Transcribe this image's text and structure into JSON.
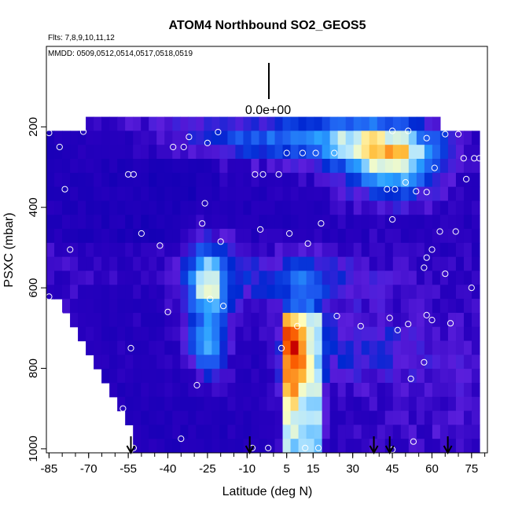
{
  "chart_data": {
    "type": "heatmap",
    "title": "ATOM4 Northbound SO2_GEOS5",
    "flights_label": "Flts: 7,8,9,10,11,12",
    "dates_label": "MMDD: 0509,0512,0514,0517,0518,0519",
    "scale_label": "0.0e+00",
    "xlabel": "Latitude (deg N)",
    "ylabel": "PSXC (mbar)",
    "xlim": [
      -86,
      81
    ],
    "ylim": [
      1010,
      0
    ],
    "x_ticks": [
      "-85",
      "-70",
      "-55",
      "-40",
      "-25",
      "-10",
      "5",
      "15",
      "30",
      "45",
      "60",
      "75"
    ],
    "x_tick_values": [
      -85,
      -70,
      -55,
      -40,
      -25,
      -10,
      5,
      15,
      30,
      45,
      60,
      75
    ],
    "y_ticks": [
      "200",
      "400",
      "600",
      "800",
      "1000"
    ],
    "y_tick_values": [
      200,
      400,
      600,
      800,
      1000
    ],
    "arrows_latitude": [
      -54,
      -9,
      38,
      44,
      66
    ],
    "colors": {
      "low": "#1400b4",
      "mid": "#2a90ff",
      "high": "#d40000"
    },
    "obs_points": [
      {
        "x": -85,
        "y": 215
      },
      {
        "x": -72,
        "y": 212
      },
      {
        "x": -81,
        "y": 250
      },
      {
        "x": -79,
        "y": 355
      },
      {
        "x": -55,
        "y": 318
      },
      {
        "x": -53,
        "y": 318
      },
      {
        "x": -50,
        "y": 465
      },
      {
        "x": -77,
        "y": 505
      },
      {
        "x": -43,
        "y": 495
      },
      {
        "x": -81,
        "y": 665
      },
      {
        "x": -40,
        "y": 660
      },
      {
        "x": -85,
        "y": 622
      },
      {
        "x": -54,
        "y": 750
      },
      {
        "x": -80,
        "y": 815
      },
      {
        "x": -29,
        "y": 842
      },
      {
        "x": -57,
        "y": 900
      },
      {
        "x": -57,
        "y": 955
      },
      {
        "x": -35,
        "y": 975
      },
      {
        "x": -53,
        "y": 998
      },
      {
        "x": -38,
        "y": 250
      },
      {
        "x": -34,
        "y": 250
      },
      {
        "x": -32,
        "y": 225
      },
      {
        "x": -25,
        "y": 240
      },
      {
        "x": -21,
        "y": 213
      },
      {
        "x": -27,
        "y": 440
      },
      {
        "x": -26,
        "y": 390
      },
      {
        "x": -20,
        "y": 485
      },
      {
        "x": -24,
        "y": 628
      },
      {
        "x": -19,
        "y": 645
      },
      {
        "x": -7,
        "y": 318
      },
      {
        "x": -4,
        "y": 318
      },
      {
        "x": -5,
        "y": 455
      },
      {
        "x": 2,
        "y": 318
      },
      {
        "x": 5,
        "y": 265
      },
      {
        "x": 11,
        "y": 265
      },
      {
        "x": 16,
        "y": 265
      },
      {
        "x": 23,
        "y": 265
      },
      {
        "x": 6,
        "y": 465
      },
      {
        "x": 13,
        "y": 490
      },
      {
        "x": 18,
        "y": 440
      },
      {
        "x": 24,
        "y": 670
      },
      {
        "x": 9,
        "y": 695
      },
      {
        "x": 3,
        "y": 750
      },
      {
        "x": 33,
        "y": 695
      },
      {
        "x": 45,
        "y": 210
      },
      {
        "x": 51,
        "y": 210
      },
      {
        "x": 58,
        "y": 228
      },
      {
        "x": 65,
        "y": 218
      },
      {
        "x": 70,
        "y": 218
      },
      {
        "x": 61,
        "y": 302
      },
      {
        "x": 72,
        "y": 278
      },
      {
        "x": 76,
        "y": 278
      },
      {
        "x": 78,
        "y": 278
      },
      {
        "x": 73,
        "y": 330
      },
      {
        "x": 50,
        "y": 338
      },
      {
        "x": 43,
        "y": 355
      },
      {
        "x": 46,
        "y": 355
      },
      {
        "x": 54,
        "y": 360
      },
      {
        "x": 58,
        "y": 362
      },
      {
        "x": 80,
        "y": 440
      },
      {
        "x": 69,
        "y": 460
      },
      {
        "x": 63,
        "y": 460
      },
      {
        "x": 45,
        "y": 430
      },
      {
        "x": 60,
        "y": 505
      },
      {
        "x": 58,
        "y": 525
      },
      {
        "x": 57,
        "y": 550
      },
      {
        "x": 65,
        "y": 565
      },
      {
        "x": 75,
        "y": 600
      },
      {
        "x": 60,
        "y": 680
      },
      {
        "x": 67,
        "y": 688
      },
      {
        "x": 51,
        "y": 690
      },
      {
        "x": 47,
        "y": 705
      },
      {
        "x": 44,
        "y": 675
      },
      {
        "x": 58,
        "y": 668
      },
      {
        "x": 57,
        "y": 785
      },
      {
        "x": 52,
        "y": 826
      },
      {
        "x": 80,
        "y": 998
      },
      {
        "x": 53,
        "y": 982
      },
      {
        "x": -8,
        "y": 998
      },
      {
        "x": -2,
        "y": 998
      },
      {
        "x": 12,
        "y": 998
      },
      {
        "x": 17,
        "y": 998
      },
      {
        "x": 45,
        "y": 1002
      }
    ]
  }
}
